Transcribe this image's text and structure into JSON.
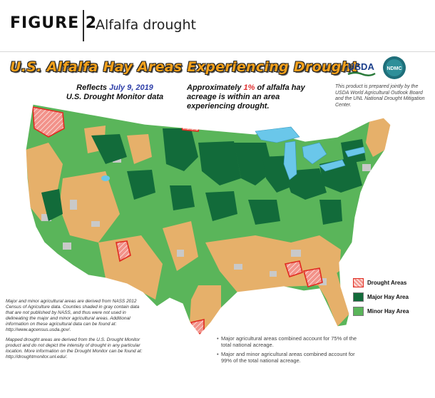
{
  "figure": {
    "label": "FIGURE 2",
    "title": "Alfalfa drought"
  },
  "map": {
    "title": "U.S. Alfalfa Hay Areas Experiencing Drought",
    "reflects_prefix": "Reflects",
    "reflects_date": "July 9, 2019",
    "source_line": "U.S. Drought Monitor data",
    "approx_prefix": "Approximately",
    "approx_pct": "1%",
    "approx_suffix": "of alfalfa hay acreage is within an area experiencing drought.",
    "jointly_note": "This product is prepared jointly by the USDA World Agricultural Outlook Board and the UNL National Drought Mitigation Center.",
    "usda_logo_text": "USDA",
    "ndmc_logo_text": "NDMC",
    "colors": {
      "drought": "#f2928a",
      "drought_outline": "#e02a20",
      "major": "#126b3a",
      "minor": "#5ab55a",
      "non_ag": "#e6b06a",
      "no_data": "#c9c9c9",
      "water": "#6ac7ea",
      "title_fill": "#f2a01c"
    }
  },
  "legend": {
    "items": [
      {
        "label": "Drought Areas",
        "color": "#f2928a"
      },
      {
        "label": "Major Hay Area",
        "color": "#126b3a"
      },
      {
        "label": "Minor Hay Area",
        "color": "#5ab55a"
      }
    ]
  },
  "notes": {
    "left_1": "Major and minor agricultural areas are derived from NASS 2012 Census of Agriculture data. Counties shaded in gray contain data that are not published by NASS, and thus were not used in delineating the major and minor agricultural areas. Additional information on these agricultural data can be found at: http://www.agcensus.usda.gov/.",
    "left_2": "Mapped drought areas are derived from the U.S. Drought Monitor product and do not depict the intensity of drought in any particular location. More information on the Drought Monitor can be found at: http://droughtmonitor.unl.edu/.",
    "right_1": "Major agricultural areas combined account for 75% of the total national acreage.",
    "right_2": "Major and minor agricultural areas combined account for 99% of the total national acreage."
  }
}
